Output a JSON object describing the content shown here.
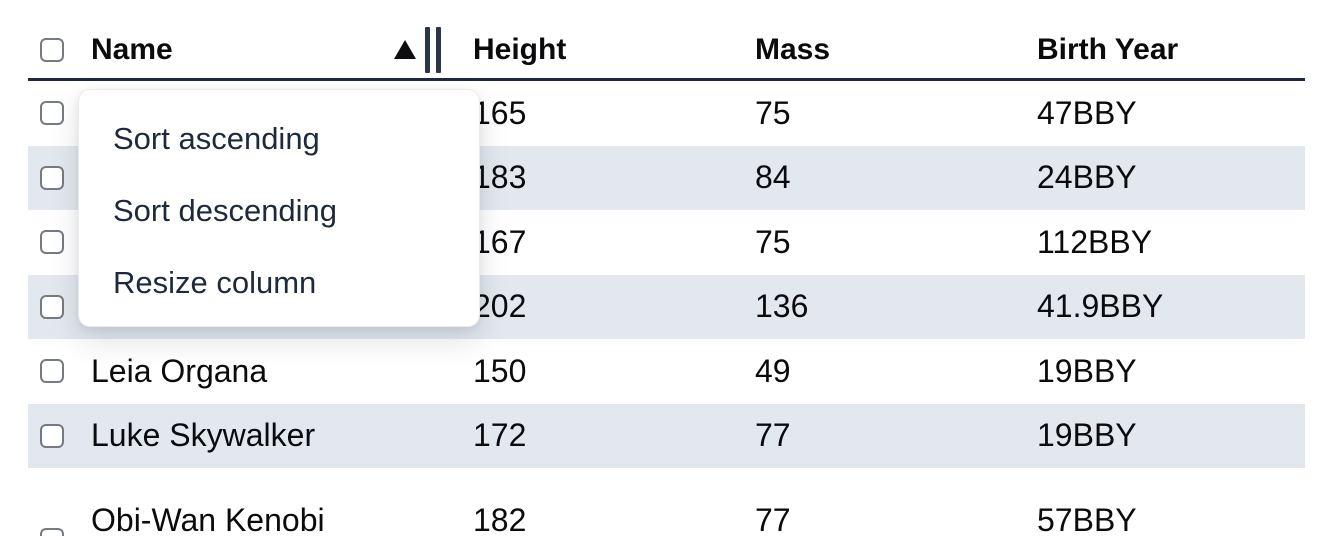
{
  "table": {
    "columns": [
      {
        "key": "name",
        "label": "Name",
        "sort_state": "ascending",
        "has_resize_handle": true
      },
      {
        "key": "height",
        "label": "Height",
        "sort_state": "none"
      },
      {
        "key": "mass",
        "label": "Mass",
        "sort_state": "none"
      },
      {
        "key": "birth_year",
        "label": "Birth Year",
        "sort_state": "none"
      }
    ],
    "rows": [
      {
        "name": "",
        "height": "165",
        "mass": "75",
        "birth_year": "47BBY",
        "striped": false,
        "name_hidden_by_menu": true
      },
      {
        "name": "",
        "height": "183",
        "mass": "84",
        "birth_year": "24BBY",
        "striped": true,
        "name_hidden_by_menu": true
      },
      {
        "name": "",
        "height": "167",
        "mass": "75",
        "birth_year": "112BBY",
        "striped": false,
        "name_hidden_by_menu": true
      },
      {
        "name": "",
        "height": "202",
        "mass": "136",
        "birth_year": "41.9BBY",
        "striped": true,
        "name_hidden_by_menu": true
      },
      {
        "name": "Leia Organa",
        "height": "150",
        "mass": "49",
        "birth_year": "19BBY",
        "striped": false
      },
      {
        "name": "Luke Skywalker",
        "height": "172",
        "mass": "77",
        "birth_year": "19BBY",
        "striped": true
      },
      {
        "name": "Obi-Wan Kenobi",
        "height": "182",
        "mass": "77",
        "birth_year": "57BBY",
        "striped": false,
        "clipped_at_bottom": true
      }
    ]
  },
  "context_menu": {
    "attached_to_column": "Name",
    "items": [
      {
        "label": "Sort ascending"
      },
      {
        "label": "Sort descending"
      },
      {
        "label": "Resize column"
      }
    ]
  },
  "icons": {
    "sort_ascending_indicator": "filled up triangle",
    "column_resize_handle": "double vertical bar"
  },
  "colors": {
    "row_stripe": "#e3e8ef",
    "header_border": "#1e293b",
    "menu_text": "#1e293b",
    "cell_text": "#0b0b0e",
    "checkbox_border": "#757a83",
    "menu_background": "#ffffff",
    "page_background": "#ffffff"
  }
}
